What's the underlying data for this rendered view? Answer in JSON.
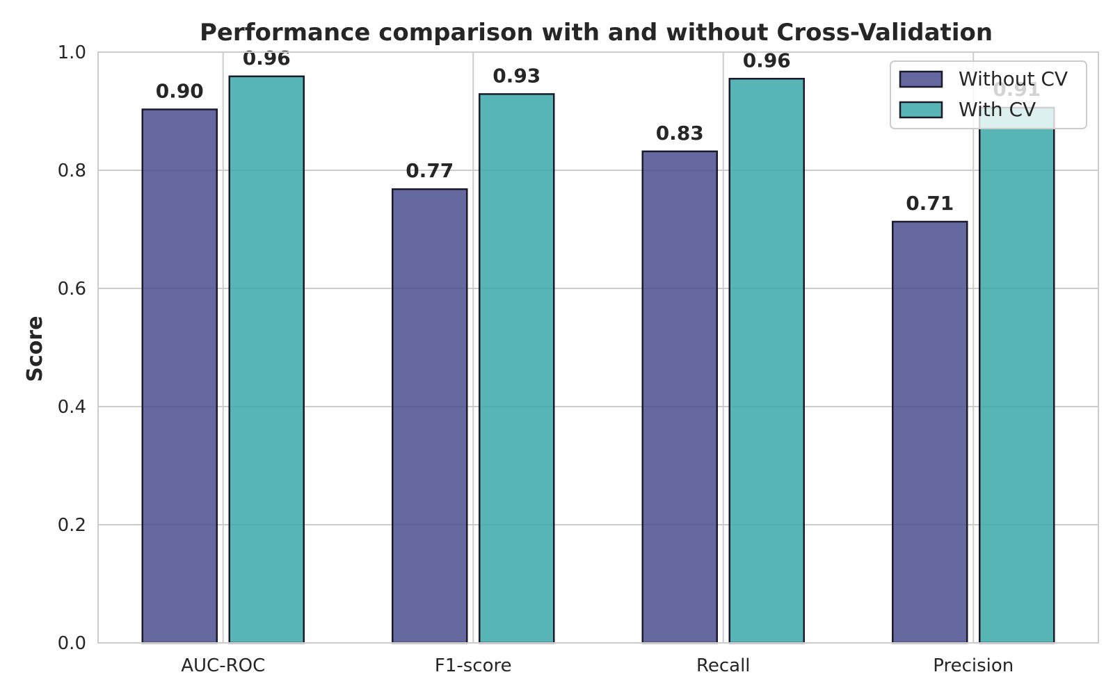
{
  "chart_data": {
    "type": "bar",
    "title": "Performance comparison with and without Cross-Validation",
    "xlabel": "",
    "ylabel": "Score",
    "categories": [
      "AUC-ROC",
      "F1-score",
      "Recall",
      "Precision"
    ],
    "series": [
      {
        "name": "Without CV",
        "values": [
          0.903,
          0.768,
          0.832,
          0.713
        ],
        "labels": [
          "0.90",
          "0.77",
          "0.83",
          "0.71"
        ]
      },
      {
        "name": "With CV",
        "values": [
          0.959,
          0.929,
          0.955,
          0.906
        ],
        "labels": [
          "0.96",
          "0.93",
          "0.96",
          "0.91"
        ]
      }
    ],
    "ylim": [
      0,
      1.0
    ],
    "yticks": [
      0.0,
      0.2,
      0.4,
      0.6,
      0.8,
      1.0
    ],
    "ytick_labels": [
      "0.0",
      "0.2",
      "0.4",
      "0.6",
      "0.8",
      "1.0"
    ],
    "grid": true,
    "legend_position": "top-right",
    "colors": {
      "series": [
        "#4a4f8f",
        "#3aa8a8"
      ],
      "bar_edge": "#1a1a2a",
      "grid": "#cccccc",
      "axes_edge": "#cccccc",
      "background": "#ffffff"
    }
  }
}
